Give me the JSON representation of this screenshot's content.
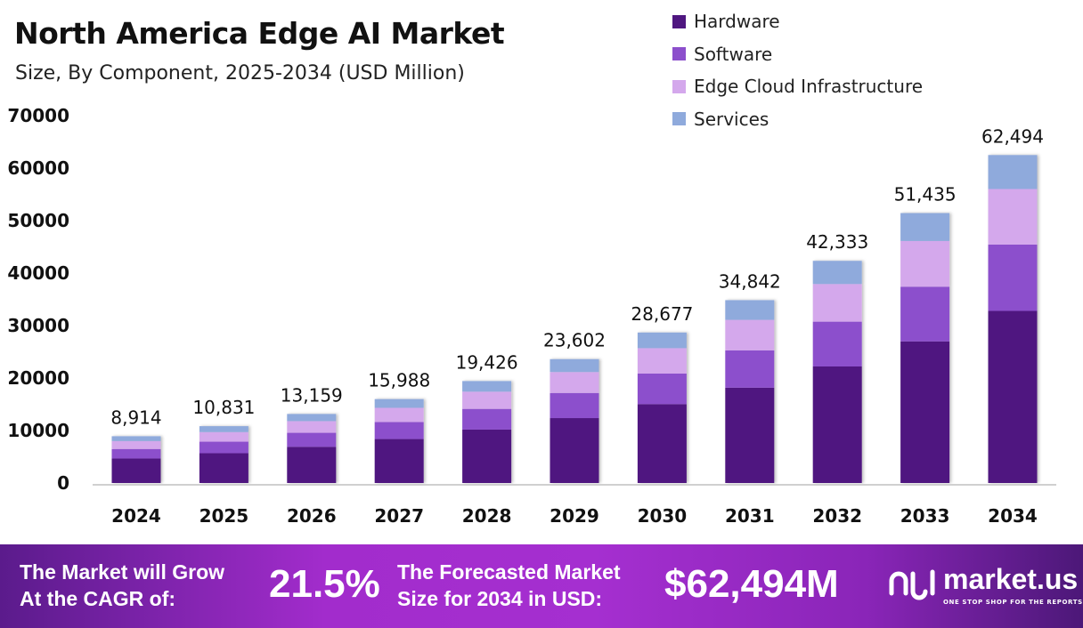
{
  "chart_data": {
    "type": "bar",
    "stacked": true,
    "title": "North America Edge AI Market",
    "subtitle": "Size, By Component, 2025-2034 (USD Million)",
    "categories": [
      "2024",
      "2025",
      "2026",
      "2027",
      "2028",
      "2029",
      "2030",
      "2031",
      "2032",
      "2033",
      "2034"
    ],
    "series": [
      {
        "name": "Hardware",
        "color": "#4f1780",
        "values": [
          4671,
          5675,
          6895,
          8378,
          10179,
          12367,
          15027,
          18155,
          22203,
          26985,
          32792
        ]
      },
      {
        "name": "Software",
        "color": "#8c4fcc",
        "values": [
          1810,
          2199,
          2671,
          3246,
          3943,
          4791,
          5821,
          7122,
          8540,
          10419,
          12639
        ]
      },
      {
        "name": "Edge Cloud Infrastructure",
        "color": "#d4a8ec",
        "values": [
          1506,
          1830,
          2224,
          2702,
          3283,
          3989,
          4846,
          5808,
          7173,
          8710,
          10589
        ]
      },
      {
        "name": "Services",
        "color": "#8faadc",
        "values": [
          927,
          1127,
          1369,
          1662,
          2021,
          2455,
          2983,
          3757,
          4417,
          5321,
          6474
        ]
      }
    ],
    "totals": [
      "8,914",
      "10,831",
      "13,159",
      "15,988",
      "19,426",
      "23,602",
      "28,677",
      "34,842",
      "42,333",
      "51,435",
      "62,494"
    ],
    "yticks": [
      "0",
      "10000",
      "20000",
      "30000",
      "40000",
      "50000",
      "60000",
      "70000"
    ],
    "ylim": [
      0,
      70000
    ],
    "grid": false,
    "legend_position": "top-right"
  },
  "banner": {
    "cagr_label_1": "The Market will Grow",
    "cagr_label_2": "At the CAGR of:",
    "cagr_value": "21.5%",
    "forecast_label_1": "The Forecasted Market",
    "forecast_label_2": "Size for 2034 in USD:",
    "forecast_value": "$62,494M",
    "logo_text": "market.us",
    "logo_tagline": "ONE STOP SHOP FOR THE REPORTS"
  }
}
